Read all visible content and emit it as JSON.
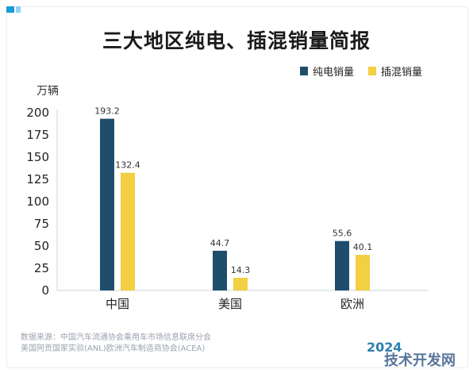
{
  "colors": {
    "series_pure_ev": "#1f4e6d",
    "series_phev": "#f2cf43",
    "corner_accent": [
      "#1a9bd7",
      "#8fd3ef"
    ],
    "text": "#222222",
    "axis": "#cfd4d9"
  },
  "header": {
    "title": "三大地区纯电、插混销量简报"
  },
  "footer": {
    "source_line1": "数据来源：中国汽车流通协会乘用车市场信息联席分会",
    "source_line2": "美国阿贡国家实验(ANL)欧洲汽车制造商协会(ACEA)",
    "brand": "2024",
    "watermark": "技术开发网"
  },
  "chart_data": {
    "type": "bar",
    "title": "三大地区纯电、插混销量简报",
    "ylabel": "万辆",
    "xlabel": "",
    "categories": [
      "中国",
      "美国",
      "欧洲"
    ],
    "series": [
      {
        "name": "纯电销量",
        "values": [
          193.2,
          44.7,
          55.6
        ],
        "labels": [
          "193.2",
          "44.7",
          "55.6"
        ]
      },
      {
        "name": "插混销量",
        "values": [
          132.4,
          14.3,
          40.1
        ],
        "labels": [
          "132.4",
          "14.3",
          "40.1"
        ]
      }
    ],
    "ylim": [
      0,
      200
    ],
    "yticks": [
      "0",
      "25",
      "50",
      "75",
      "100",
      "125",
      "150",
      "175",
      "200"
    ],
    "grid": false,
    "legend_position": "top-right"
  }
}
